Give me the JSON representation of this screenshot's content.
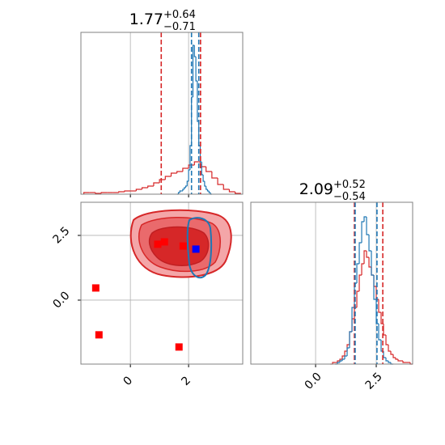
{
  "chart_data": [
    {
      "type": "histogram",
      "title": "1.77",
      "title_sup": "+0.64",
      "title_sub": "−0.71",
      "xlim": [
        -1.7,
        3.86
      ],
      "ylim": [
        0,
        100
      ],
      "xticks": [
        0,
        2
      ],
      "grid": true,
      "tick_labels": false,
      "series": [
        {
          "color": "#d62728",
          "bins": [
            -1.6,
            -1.4,
            -1.2,
            -1.0,
            -0.8,
            -0.6,
            -0.4,
            -0.2,
            0.0,
            0.2,
            0.4,
            0.6,
            0.8,
            1.0,
            1.2,
            1.4,
            1.6,
            1.8,
            2.0,
            2.2,
            2.4,
            2.6,
            2.8,
            3.0,
            3.2,
            3.4,
            3.6,
            3.8
          ],
          "values": [
            1,
            1,
            0.5,
            1,
            1,
            1,
            1.5,
            2,
            2,
            3,
            4,
            5,
            7,
            9,
            11,
            13,
            14,
            16,
            18,
            20,
            17,
            14,
            10,
            6,
            3,
            1.5,
            0.5
          ]
        },
        {
          "color": "#1f77b4",
          "bins": [
            1.6,
            1.65,
            1.7,
            1.75,
            1.8,
            1.85,
            1.9,
            1.95,
            2.0,
            2.05,
            2.1,
            2.15,
            2.2,
            2.25,
            2.3,
            2.35,
            2.4,
            2.45,
            2.5,
            2.55,
            2.6,
            2.65,
            2.7,
            2.75,
            2.8
          ],
          "values": [
            0,
            1,
            2,
            2,
            3,
            4,
            5,
            8,
            15,
            30,
            60,
            92,
            85,
            70,
            45,
            30,
            20,
            12,
            8,
            5,
            3,
            2,
            1,
            0
          ]
        }
      ],
      "vlines": [
        {
          "color": "#d62728",
          "values": [
            1.06,
            2.41
          ]
        },
        {
          "color": "#1f77b4",
          "values": [
            2.1,
            2.35
          ]
        }
      ]
    },
    {
      "type": "scatter",
      "xlim": [
        -1.7,
        3.86
      ],
      "ylim": [
        -2.47,
        3.78
      ],
      "xticks": [
        0,
        2
      ],
      "yticks": [
        {
          "value": 0,
          "label": "0.0"
        },
        2.5
      ],
      "grid": true,
      "tick_labels": true,
      "series": [
        {
          "color": "#ff0000",
          "x": [
            -1.19,
            -1.08,
            1.67,
            0.94,
            1.17,
            1.81
          ],
          "y": [
            0.47,
            -1.34,
            -1.81,
            2.16,
            2.25,
            2.09
          ]
        },
        {
          "color": "#0000ff",
          "x": [
            2.25
          ],
          "y": [
            1.97
          ]
        }
      ]
    },
    {
      "type": "histogram",
      "title": "2.09",
      "title_sup": "+0.52",
      "title_sub": "−0.54",
      "xlim": [
        -2.67,
        4.0
      ],
      "ylim": [
        0,
        100
      ],
      "xticks": [
        {
          "value": 0,
          "label": "0.0"
        },
        2.5
      ],
      "grid": true,
      "tick_labels": true,
      "series": [
        {
          "color": "#d62728",
          "bins": [
            0.6,
            0.7,
            0.8,
            0.9,
            1.0,
            1.1,
            1.2,
            1.3,
            1.4,
            1.5,
            1.6,
            1.7,
            1.8,
            1.9,
            2.0,
            2.1,
            2.2,
            2.3,
            2.4,
            2.5,
            2.6,
            2.7,
            2.8,
            2.9,
            3.0,
            3.1,
            3.2,
            3.3,
            3.4,
            3.5,
            3.6,
            3.7,
            3.8,
            3.9,
            4.0
          ],
          "values": [
            0,
            1,
            1,
            2,
            3,
            5,
            8,
            12,
            20,
            28,
            35,
            45,
            55,
            62,
            70,
            66,
            60,
            55,
            48,
            40,
            32,
            25,
            18,
            12,
            8,
            6,
            4,
            3,
            2,
            2,
            1,
            1,
            1,
            0
          ]
        },
        {
          "color": "#1f77b4",
          "bins": [
            0.8,
            0.9,
            1.0,
            1.1,
            1.2,
            1.3,
            1.4,
            1.5,
            1.6,
            1.7,
            1.8,
            1.9,
            2.0,
            2.1,
            2.2,
            2.3,
            2.4,
            2.5,
            2.6,
            2.7,
            2.8,
            2.9,
            3.0,
            3.1,
            3.2
          ],
          "values": [
            0,
            1,
            2,
            3,
            5,
            10,
            20,
            35,
            50,
            62,
            75,
            88,
            91,
            80,
            70,
            55,
            40,
            25,
            15,
            8,
            4,
            2,
            1,
            0
          ]
        }
      ],
      "vlines": [
        {
          "color": "#d62728",
          "values": [
            1.6,
            2.77
          ]
        },
        {
          "color": "#1f77b4",
          "values": [
            1.63,
            2.53
          ]
        }
      ]
    }
  ]
}
